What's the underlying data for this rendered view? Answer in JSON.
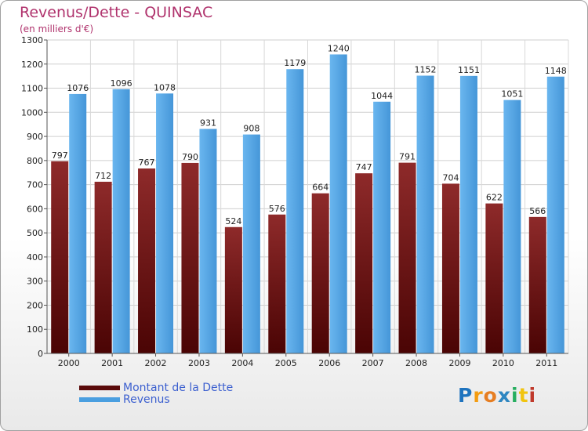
{
  "title": "Revenus/Dette - QUINSAC",
  "subtitle": "(en milliers d'€)",
  "brand": {
    "logo_text": "Proxiti",
    "colors": [
      "#1e73be",
      "#f39c12",
      "#e67e22",
      "#2e86c1",
      "#27ae60",
      "#f1c40f",
      "#c0392b"
    ]
  },
  "colors": {
    "dette": "#7a1f1f",
    "dette_dark": "#4a0808",
    "revenus": "#5bacea",
    "revenus_dark": "#3b8fd4",
    "title": "#b0336d",
    "legend_text": "#3b5fcf"
  },
  "chart_data": {
    "type": "bar",
    "title": "Revenus/Dette - QUINSAC",
    "ylabel": "(en milliers d'€)",
    "xlabel": "",
    "categories": [
      "2000",
      "2001",
      "2002",
      "2003",
      "2004",
      "2005",
      "2006",
      "2007",
      "2008",
      "2009",
      "2010",
      "2011"
    ],
    "series": [
      {
        "name": "Montant de la Dette",
        "values": [
          797,
          712,
          767,
          790,
          524,
          576,
          664,
          747,
          791,
          704,
          622,
          566
        ]
      },
      {
        "name": "Revenus",
        "values": [
          1076,
          1096,
          1078,
          931,
          908,
          1179,
          1240,
          1044,
          1152,
          1151,
          1051,
          1148
        ]
      }
    ],
    "ylim": [
      0,
      1300
    ],
    "yticks": [
      0,
      100,
      200,
      300,
      400,
      500,
      600,
      700,
      800,
      900,
      1000,
      1100,
      1200,
      1300
    ],
    "grid": true,
    "legend": "bottom-left"
  }
}
